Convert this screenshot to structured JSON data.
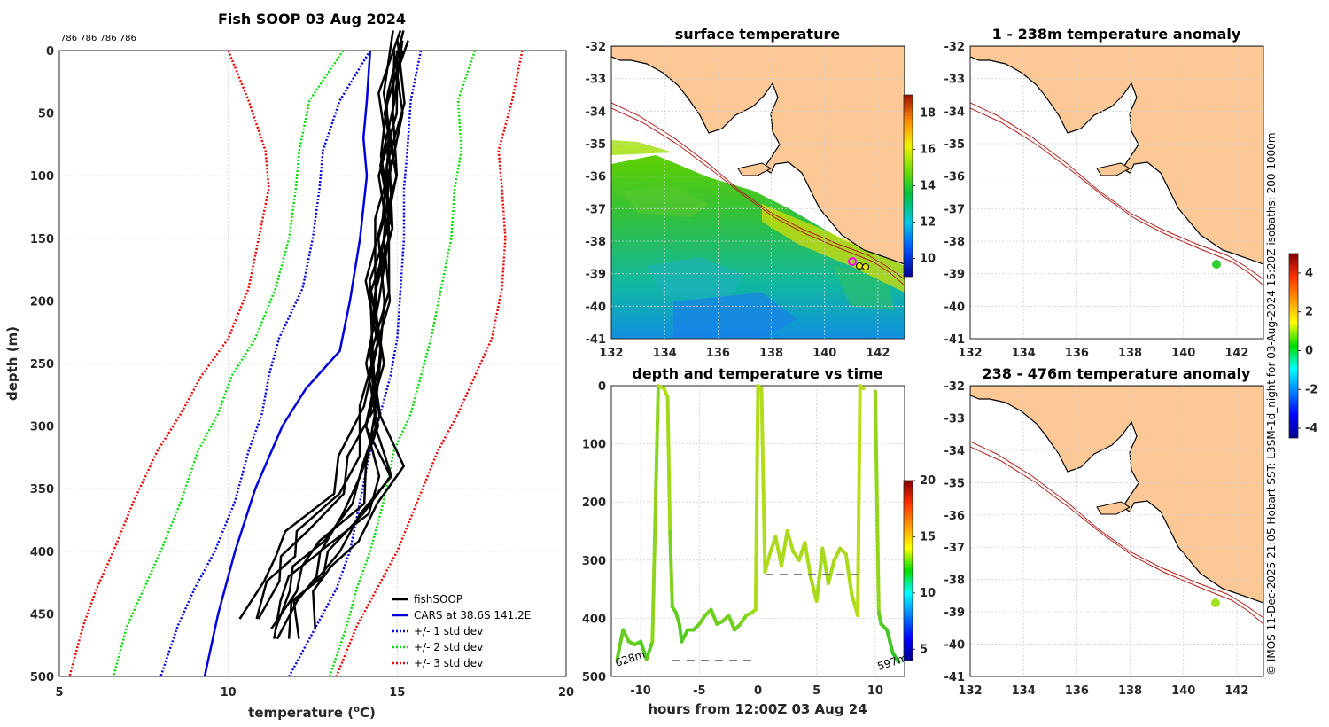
{
  "chart_data": [
    {
      "type": "line",
      "title": "Fish SOOP 03 Aug 2024",
      "counts_label": "786 786 786 786",
      "xlabel": "temperature (°C)",
      "ylabel": "depth (m)",
      "xlim": [
        5,
        20
      ],
      "ylim": [
        500,
        0
      ],
      "xticks": [
        5,
        10,
        15,
        20
      ],
      "yticks": [
        0,
        50,
        100,
        150,
        200,
        250,
        300,
        350,
        400,
        450,
        500
      ],
      "series": [
        {
          "name": "fishSOOP",
          "color": "#000000",
          "style": "solid",
          "depth": [
            0,
            50,
            100,
            150,
            200,
            250,
            300,
            340,
            370,
            400,
            420,
            440,
            470
          ],
          "temp": [
            15.0,
            14.8,
            14.7,
            14.6,
            14.4,
            14.3,
            14.2,
            14.0,
            13.5,
            12.5,
            12.0,
            11.5,
            11.2
          ]
        },
        {
          "name": "CARS at 38.6S 141.2E",
          "color": "#0000dd",
          "style": "solid",
          "depth": [
            0,
            40,
            70,
            100,
            150,
            200,
            240,
            270,
            300,
            350,
            400,
            450,
            500
          ],
          "temp": [
            14.2,
            14.1,
            14.0,
            14.1,
            13.9,
            13.6,
            13.3,
            12.3,
            11.6,
            10.8,
            10.2,
            9.7,
            9.3
          ]
        }
      ],
      "bands": [
        {
          "name": "+/- 1 std dev",
          "color": "#0000dd",
          "left": [
            14.2,
            13.3,
            12.8,
            12.7,
            12.5,
            12.2,
            11.5,
            11.2,
            11.0,
            10.6,
            10.2,
            9.6,
            9.0,
            8.5,
            8.0
          ],
          "right": [
            15.7,
            15.4,
            15.3,
            15.2,
            15.2,
            15.1,
            15.0,
            14.8,
            14.5,
            14.2,
            13.9,
            13.6,
            13.2,
            12.6,
            11.8
          ]
        },
        {
          "name": "+/- 2 std dev",
          "color": "#00dd00",
          "left": [
            13.4,
            12.4,
            12.1,
            12.0,
            11.8,
            11.4,
            10.8,
            10.1,
            9.7,
            9.1,
            8.6,
            8.0,
            7.5,
            7.0,
            6.6
          ],
          "right": [
            17.3,
            16.8,
            16.9,
            16.7,
            16.6,
            16.3,
            16.0,
            15.7,
            15.4,
            14.9,
            14.6,
            14.2,
            13.8,
            13.5,
            13.0
          ],
          "note": "outer curves mirror"
        },
        {
          "name": "+/- 3 std dev",
          "color": "#ee0000",
          "left": [
            10.0,
            10.6,
            11.1,
            11.2,
            10.9,
            10.6,
            10.0,
            9.2,
            8.6,
            7.9,
            7.2,
            6.6,
            6.1,
            5.7,
            5.3
          ],
          "right": [
            18.7,
            18.4,
            18.0,
            18.1,
            18.2,
            18.1,
            17.8,
            17.3,
            16.8,
            16.2,
            15.6,
            15.0,
            14.4,
            13.8,
            13.2
          ]
        }
      ],
      "band_depths": [
        0,
        40,
        80,
        110,
        150,
        190,
        230,
        260,
        290,
        320,
        360,
        400,
        430,
        460,
        500
      ],
      "legend": [
        "fishSOOP",
        "CARS at 38.6S 141.2E",
        "+/- 1 std dev",
        "+/- 2 std dev",
        "+/- 3 std dev"
      ],
      "legend_position": "bottom-right"
    },
    {
      "type": "heatmap",
      "title": "surface temperature",
      "xlim": [
        132,
        143
      ],
      "ylim": [
        -41,
        -32
      ],
      "xticks": [
        132,
        134,
        136,
        138,
        140,
        142
      ],
      "yticks": [
        -32,
        -33,
        -34,
        -35,
        -36,
        -37,
        -38,
        -39,
        -40,
        -41
      ],
      "colorbar_ticks": [
        10,
        12,
        14,
        16,
        18
      ],
      "colorbar_range": [
        9,
        19
      ]
    },
    {
      "type": "scatter",
      "title": "depth and temperature vs time",
      "xlabel": "hours from 12:00Z 03 Aug 24",
      "xlim": [
        -12.5,
        12.5
      ],
      "ylim": [
        500,
        0
      ],
      "xticks": [
        -10,
        -5,
        0,
        5,
        10
      ],
      "yticks": [
        0,
        100,
        200,
        300,
        400,
        500
      ],
      "colorbar_ticks": [
        5,
        10,
        15,
        20
      ],
      "colorbar_range": [
        4,
        20
      ],
      "annotations": [
        "628m",
        "597m"
      ],
      "dashed_levels": [
        {
          "depth": 473,
          "x": [
            -7,
            -0.3
          ]
        },
        {
          "depth": 325,
          "x": [
            0.8,
            8.5
          ]
        }
      ],
      "track": {
        "hours": [
          -12,
          -11.5,
          -11,
          -10.5,
          -10,
          -9.5,
          -9,
          -8.5,
          -8,
          -7.7,
          -7.5,
          -7.3,
          -7,
          -6.7,
          -6.5,
          -6,
          -5.5,
          -5,
          -4.5,
          -4,
          -3.5,
          -3,
          -2.5,
          -2,
          -1.5,
          -1,
          -0.5,
          -0.2,
          0,
          0.3,
          0.6,
          1,
          1.5,
          2,
          2.5,
          3,
          3.5,
          4,
          4.5,
          5,
          5.5,
          6,
          6.5,
          7,
          7.5,
          8,
          8.3,
          8.5,
          8.7,
          9,
          10,
          10.3,
          10.5,
          11,
          11.5,
          12
        ],
        "depth": [
          470,
          420,
          440,
          445,
          440,
          470,
          440,
          0,
          5,
          20,
          250,
          380,
          390,
          410,
          440,
          420,
          420,
          410,
          395,
          385,
          410,
          405,
          395,
          420,
          410,
          395,
          390,
          385,
          0,
          5,
          320,
          290,
          260,
          310,
          250,
          285,
          300,
          270,
          330,
          370,
          280,
          340,
          300,
          280,
          290,
          360,
          380,
          395,
          0,
          5,
          10,
          390,
          410,
          420,
          460,
          475
        ],
        "temp": [
          12,
          12.5,
          12.3,
          12.1,
          12,
          11.8,
          12.2,
          14.5,
          14.6,
          14.5,
          13.5,
          12.2,
          12.3,
          12.0,
          11.6,
          12.1,
          12.2,
          12.4,
          12.6,
          12.8,
          12.3,
          12.6,
          12.8,
          12.4,
          12.7,
          13.2,
          13.6,
          14,
          14.6,
          14.5,
          14.4,
          14.3,
          14.2,
          14.3,
          14.1,
          14.3,
          14.2,
          14.1,
          14.3,
          13.9,
          14.2,
          13.9,
          14.1,
          14.2,
          14.3,
          14.0,
          14.3,
          14.5,
          14.7,
          14.8,
          14.5,
          12.5,
          12.0,
          11.5,
          11.0,
          10.5
        ]
      }
    },
    {
      "type": "heatmap",
      "title": "1 - 238m temperature anomaly",
      "xlim": [
        132,
        143
      ],
      "ylim": [
        -41,
        -32
      ],
      "xticks": [
        132,
        134,
        136,
        138,
        140,
        142
      ],
      "yticks": [
        -32,
        -33,
        -34,
        -35,
        -36,
        -37,
        -38,
        -39,
        -40,
        -41
      ],
      "colorbar_ticks": [
        -4,
        -2,
        0,
        2,
        4
      ],
      "colorbar_range": [
        -4.5,
        5
      ],
      "point": {
        "lon": 141.3,
        "lat": -38.7
      }
    },
    {
      "type": "heatmap",
      "title": "238 - 476m temperature anomaly",
      "xlim": [
        132,
        143
      ],
      "ylim": [
        -41,
        -32
      ],
      "xticks": [
        132,
        134,
        136,
        138,
        140,
        142
      ],
      "yticks": [
        -32,
        -33,
        -34,
        -35,
        -36,
        -37,
        -38,
        -39,
        -40,
        -41
      ],
      "point": {
        "lon": 141.3,
        "lat": -38.7
      }
    }
  ],
  "side_note": "© IMOS 11-Dec-2025 21:05 Hobart SST: L3SM-1d_night for 03-Aug-2024 15:20Z isobaths: 200  1000m",
  "colors": {
    "land": "#fbc896",
    "coast": "#000000",
    "isobath": "#b4201e",
    "ocean": "#ffffff"
  }
}
